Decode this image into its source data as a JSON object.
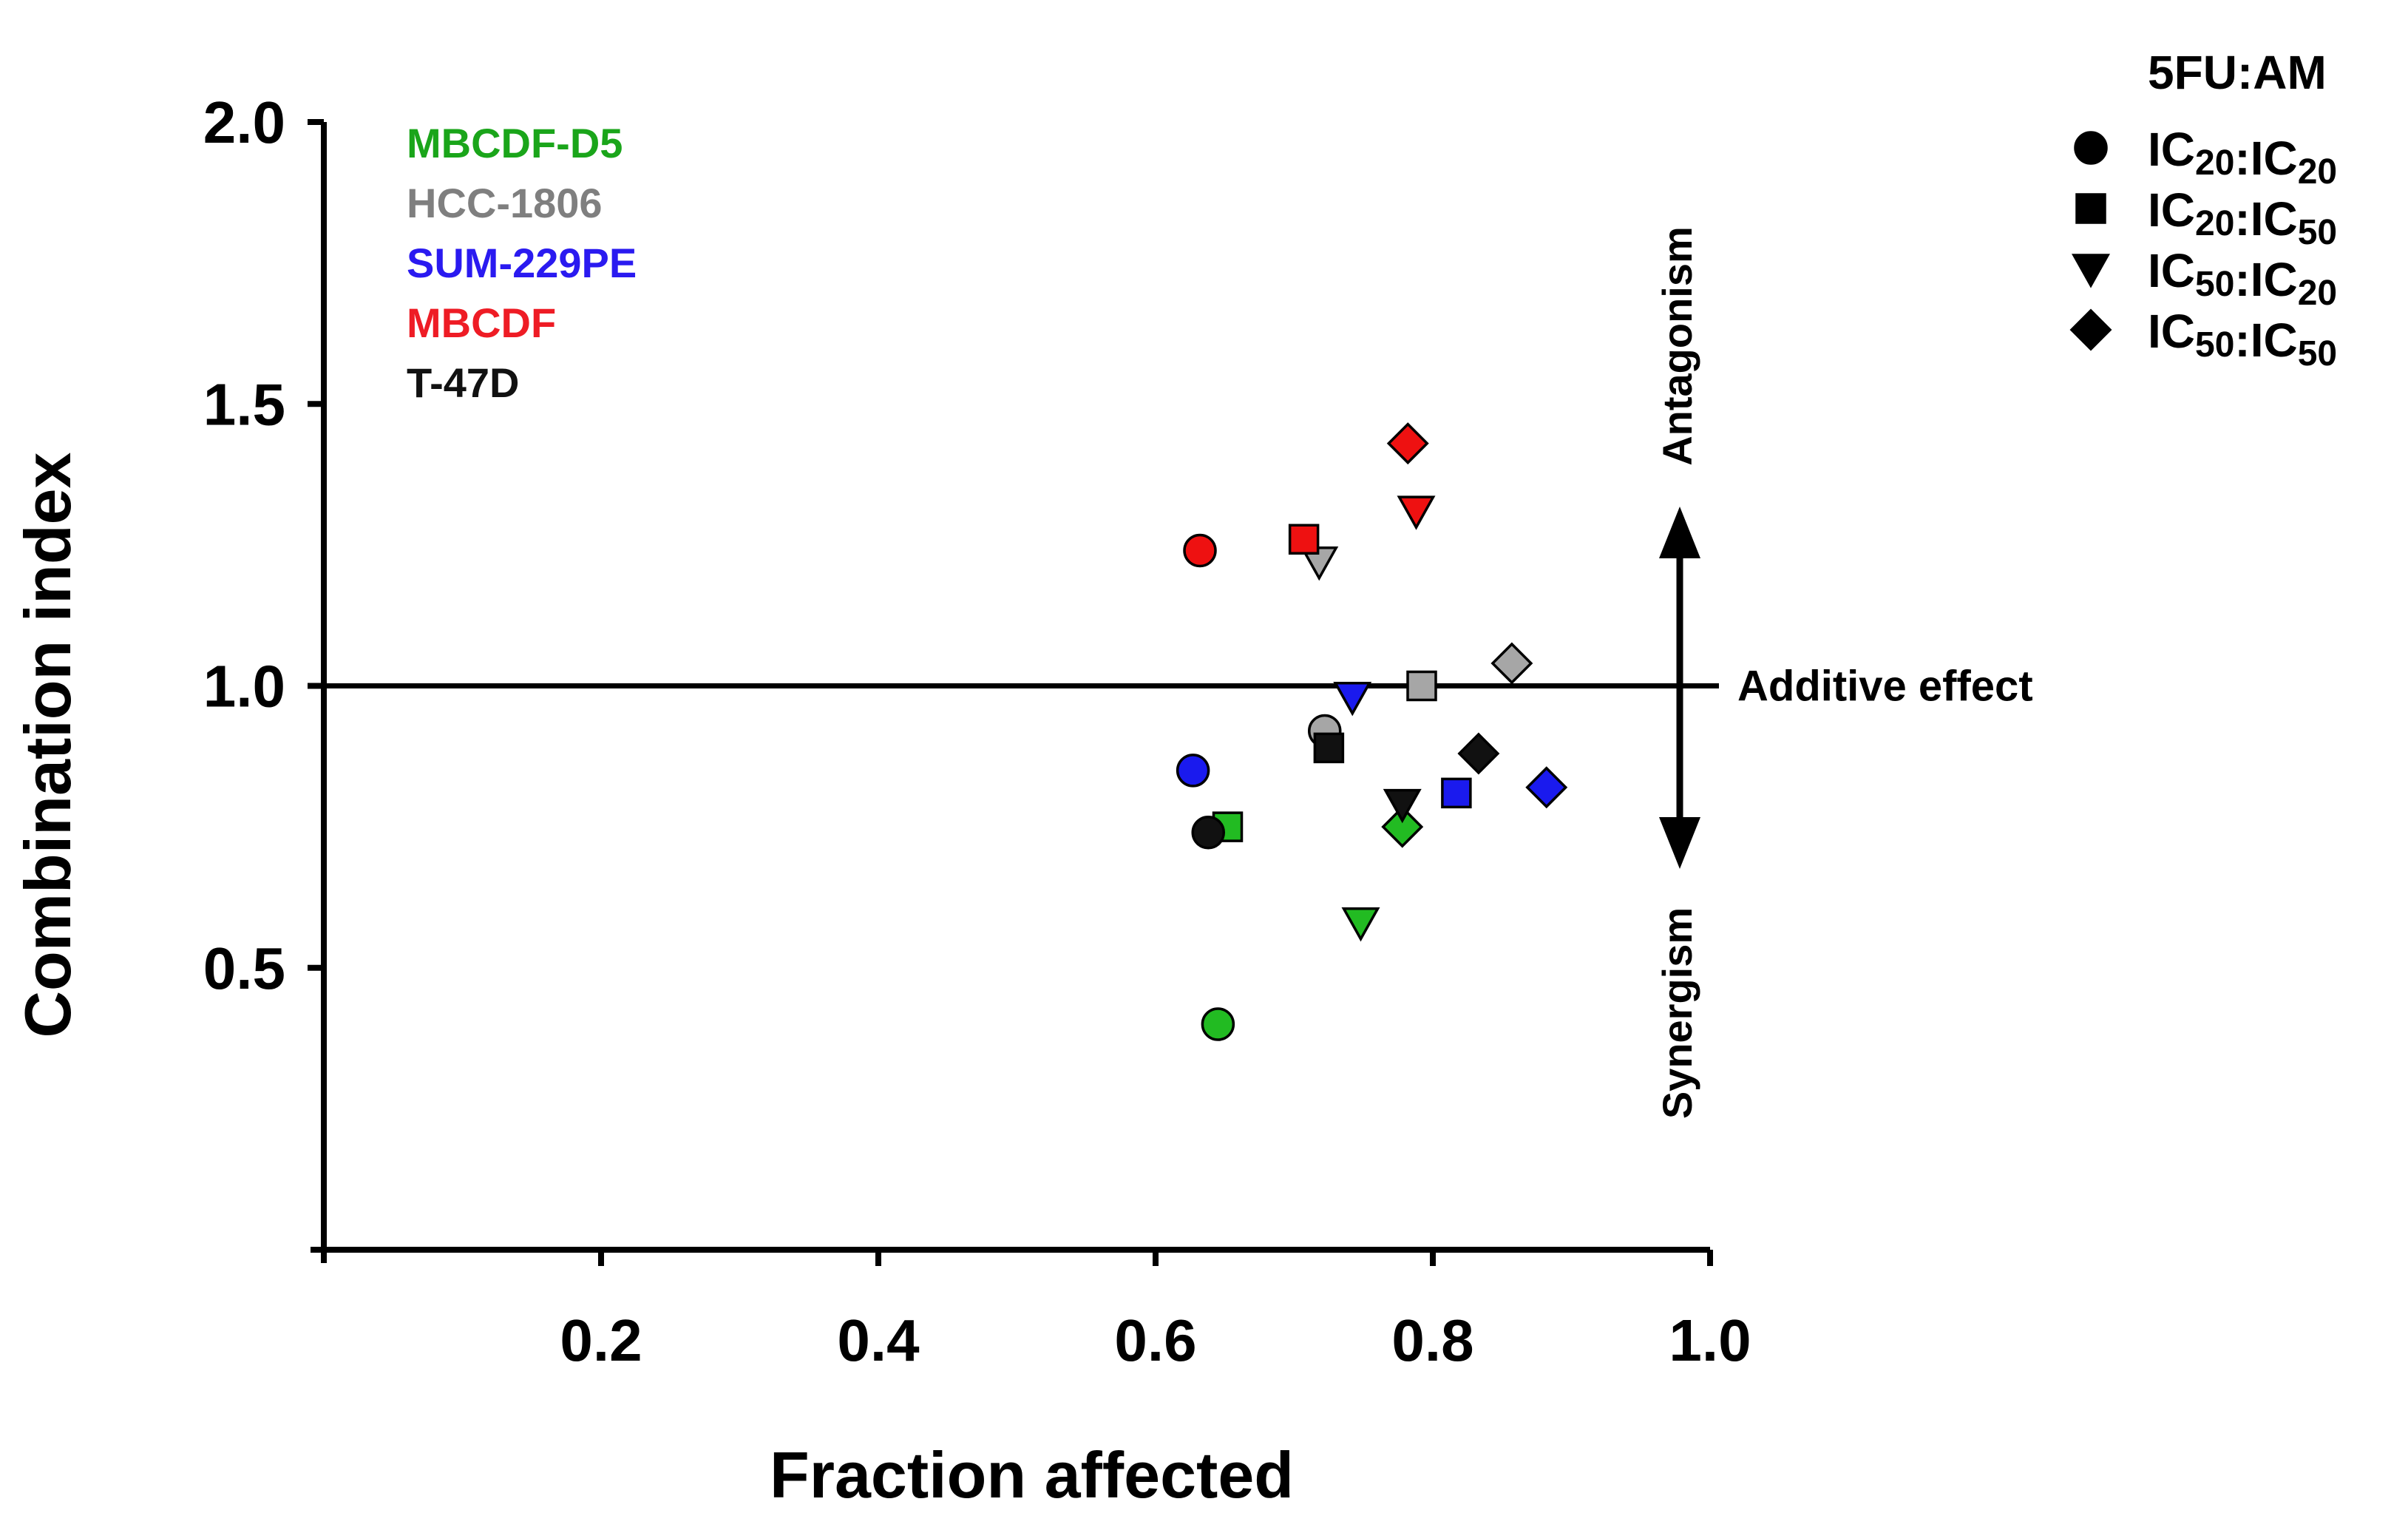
{
  "chart_data": {
    "type": "scatter",
    "title": "",
    "xlabel": "Fraction affected",
    "ylabel": "Combination index",
    "xlim": [
      0,
      1.0
    ],
    "ylim": [
      0,
      2.0
    ],
    "x_ticks": [
      0.2,
      0.4,
      0.6,
      0.8,
      1.0
    ],
    "x_tick_labels": [
      "0.2",
      "0.4",
      "0.6",
      "0.8",
      "1.0"
    ],
    "y_ticks": [
      0.5,
      1.0,
      1.5,
      2.0
    ],
    "y_tick_labels": [
      "0.5",
      "1.0",
      "1.5",
      "2.0"
    ],
    "reference_line": {
      "y": 1.0,
      "label": "Additive effect"
    },
    "annotations": {
      "up": "Antagonism",
      "down": "Synergism"
    },
    "cell_lines": [
      {
        "name": "MBCDF-D5",
        "color": "#1aa51a"
      },
      {
        "name": "HCC-1806",
        "color": "#7f7f7f"
      },
      {
        "name": "SUM-229PE",
        "color": "#2a1af0"
      },
      {
        "name": "MBCDF",
        "color": "#ee1c25"
      },
      {
        "name": "T-47D",
        "color": "#111111"
      }
    ],
    "ratio_legend": {
      "title": "5FU:AM",
      "items": [
        {
          "marker": "circle",
          "a": "IC",
          "a_sub": "20",
          "b": "IC",
          "b_sub": "20"
        },
        {
          "marker": "square",
          "a": "IC",
          "a_sub": "20",
          "b": "IC",
          "b_sub": "50"
        },
        {
          "marker": "triangle-down",
          "a": "IC",
          "a_sub": "50",
          "b": "IC",
          "b_sub": "20"
        },
        {
          "marker": "diamond",
          "a": "IC",
          "a_sub": "50",
          "b": "IC",
          "b_sub": "50"
        }
      ]
    },
    "series": [
      {
        "name": "MBCDF-D5",
        "color": "#22bb22",
        "points": [
          {
            "marker": "circle",
            "x": 0.645,
            "y": 0.4
          },
          {
            "marker": "square",
            "x": 0.652,
            "y": 0.75
          },
          {
            "marker": "triangle-down",
            "x": 0.748,
            "y": 0.58
          },
          {
            "marker": "diamond",
            "x": 0.778,
            "y": 0.75
          }
        ]
      },
      {
        "name": "HCC-1806",
        "color": "#a6a6a6",
        "points": [
          {
            "marker": "circle",
            "x": 0.722,
            "y": 0.92
          },
          {
            "marker": "square",
            "x": 0.792,
            "y": 1.0
          },
          {
            "marker": "triangle-down",
            "x": 0.718,
            "y": 1.22
          },
          {
            "marker": "diamond",
            "x": 0.857,
            "y": 1.04
          }
        ]
      },
      {
        "name": "SUM-229PE",
        "color": "#1a1aee",
        "points": [
          {
            "marker": "circle",
            "x": 0.627,
            "y": 0.85
          },
          {
            "marker": "square",
            "x": 0.817,
            "y": 0.81
          },
          {
            "marker": "triangle-down",
            "x": 0.742,
            "y": 0.98
          },
          {
            "marker": "diamond",
            "x": 0.882,
            "y": 0.82
          }
        ]
      },
      {
        "name": "MBCDF",
        "color": "#ee1111",
        "points": [
          {
            "marker": "circle",
            "x": 0.632,
            "y": 1.24
          },
          {
            "marker": "square",
            "x": 0.707,
            "y": 1.26
          },
          {
            "marker": "triangle-down",
            "x": 0.788,
            "y": 1.31
          },
          {
            "marker": "diamond",
            "x": 0.782,
            "y": 1.43
          }
        ]
      },
      {
        "name": "T-47D",
        "color": "#111111",
        "points": [
          {
            "marker": "circle",
            "x": 0.638,
            "y": 0.74
          },
          {
            "marker": "square",
            "x": 0.725,
            "y": 0.89
          },
          {
            "marker": "triangle-down",
            "x": 0.778,
            "y": 0.79
          },
          {
            "marker": "diamond",
            "x": 0.833,
            "y": 0.88
          }
        ]
      }
    ]
  }
}
